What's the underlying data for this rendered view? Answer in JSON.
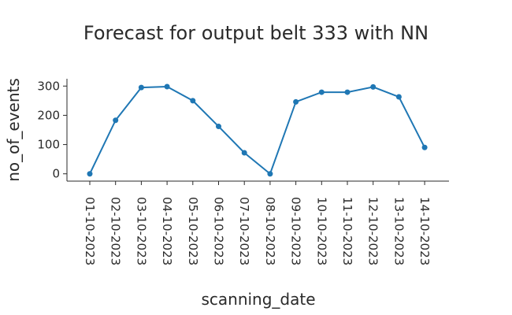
{
  "chart_data": {
    "type": "line",
    "title": "Forecast for output belt 333 with NN",
    "xlabel": "scanning_date",
    "ylabel": "no_of_events",
    "categories": [
      "01-10-2023",
      "02-10-2023",
      "03-10-2023",
      "04-10-2023",
      "05-10-2023",
      "06-10-2023",
      "07-10-2023",
      "08-10-2023",
      "09-10-2023",
      "10-10-2023",
      "11-10-2023",
      "12-10-2023",
      "13-10-2023",
      "14-10-2023"
    ],
    "series": [
      {
        "values": [
          0,
          183,
          295,
          298,
          250,
          162,
          72,
          0,
          246,
          279,
          279,
          297,
          263,
          90
        ]
      }
    ],
    "ylim": [
      -25,
      325
    ],
    "yticks": [
      0,
      100,
      200,
      300
    ],
    "grid": false,
    "legend": "none",
    "color": "#1f77b4"
  }
}
